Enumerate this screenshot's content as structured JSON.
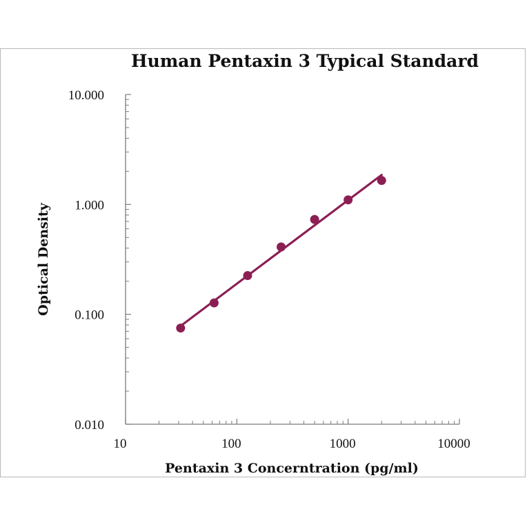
{
  "chart_data": {
    "type": "scatter",
    "title": "Human Pentaxin 3 Typical Standard",
    "xlabel": "Pentaxin 3 Concerntration (pg/ml)",
    "ylabel": "Optical Density",
    "x_scale": "log",
    "y_scale": "log",
    "xlim": [
      10,
      10000
    ],
    "ylim": [
      0.01,
      10
    ],
    "x_ticks": [
      "10",
      "100",
      "1000",
      "10000"
    ],
    "y_ticks": [
      "0.010",
      "0.100",
      "1.000",
      "10.000"
    ],
    "grid": false,
    "legend": "none",
    "series": [
      {
        "x": [
          31.25,
          62.5,
          125,
          250,
          500,
          1000,
          2000
        ],
        "y": [
          0.075,
          0.127,
          0.225,
          0.41,
          0.73,
          1.1,
          1.65
        ],
        "color": "#8b1f54",
        "fit_line": true
      }
    ]
  }
}
